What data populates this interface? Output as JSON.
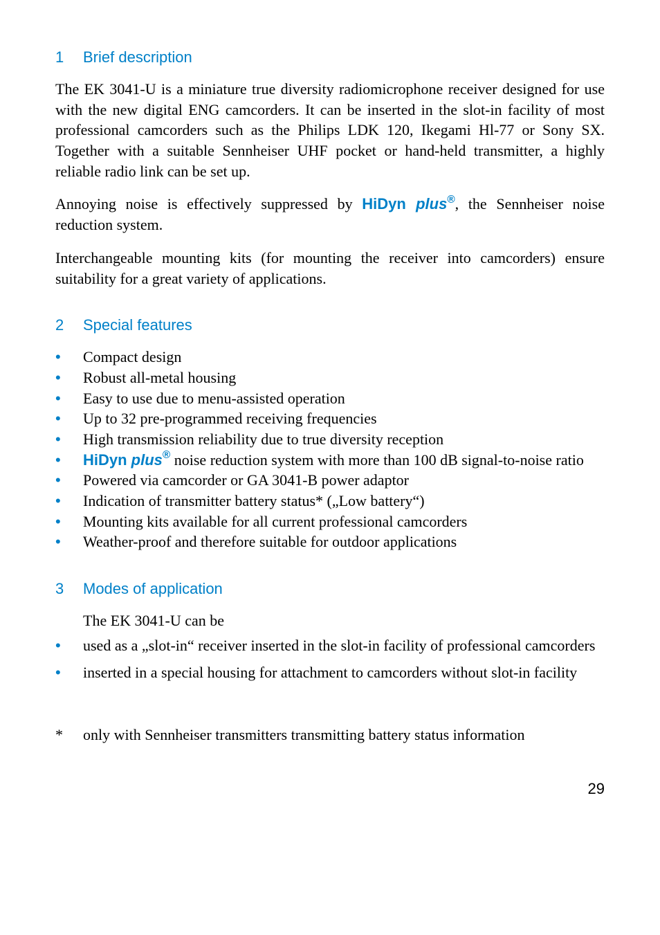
{
  "sections": {
    "s1": {
      "num": "1",
      "title": "Brief description"
    },
    "s2": {
      "num": "2",
      "title": "Special features"
    },
    "s3": {
      "num": "3",
      "title": "Modes of application"
    }
  },
  "para": {
    "p1": "The EK 3041-U is a miniature true diversity radiomicrophone receiver designed for use with the new digital ENG camcorders. It can be inserted in the slot-in facility of most professional camcorders such as the Philips LDK 120, Ikegami Hl-77 or Sony SX. Together with a suitable Sennheiser UHF pocket or hand-held transmitter, a highly reliable radio link can be set up.",
    "p2_pre": "Annoying noise is effectively suppressed by ",
    "p2_post": ", the Sennheiser noise reduction system.",
    "p3": "Interchangeable mounting kits (for mounting the receiver into camcorders) ensure suitability for a great variety of applications."
  },
  "hidyn": {
    "hi": "HiDyn",
    "plus": " plus",
    "reg": "®"
  },
  "features": {
    "f1": "Compact design",
    "f2": "Robust all-metal housing",
    "f3": "Easy to use due to menu-assisted operation",
    "f4": "Up to 32 pre-programmed receiving frequencies",
    "f5": "High transmission reliability due to true diversity reception",
    "f6_post": " noise reduction system with more than 100 dB signal-to-noise ratio",
    "f7": "Powered via camcorder or GA 3041-B power adaptor",
    "f8": "Indication of transmitter battery status* („Low battery“)",
    "f9": "Mounting kits available for all current professional camcorders",
    "f10": "Weather-proof and therefore suitable for outdoor applications"
  },
  "modes": {
    "lead": "The EK 3041-U can be",
    "m1": "used as a „slot-in“ receiver inserted in the slot-in facility of professional camcorders",
    "m2": "inserted in a special housing for attachment to camcorders without slot-in facility"
  },
  "footnote": {
    "marker": "*",
    "text": "only with Sennheiser transmitters transmitting battery status information"
  },
  "bullet": "•",
  "page_number": "29",
  "colors": {
    "accent": "#0080c8",
    "text": "#000000",
    "bg": "#ffffff"
  }
}
